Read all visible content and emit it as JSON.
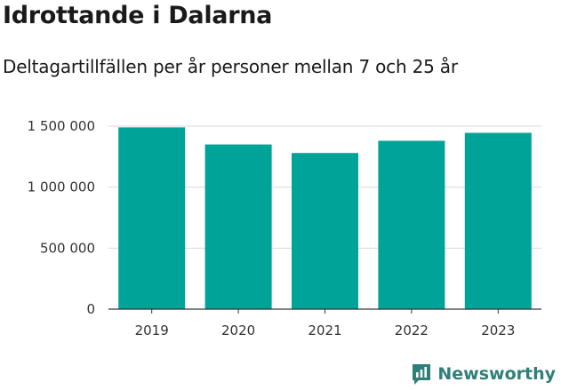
{
  "header": {
    "title": "Idrottande i Dalarna",
    "subtitle": "Deltagartillfällen per år personer mellan 7 och 25 år"
  },
  "brand": {
    "name": "Newsworthy",
    "icon": "bar-chart-logo-icon",
    "color": "#2f7f78"
  },
  "colors": {
    "bar": "#00a398",
    "grid": "#d9d9d9",
    "axis": "#333333"
  },
  "chart_data": {
    "type": "bar",
    "categories": [
      "2019",
      "2020",
      "2021",
      "2022",
      "2023"
    ],
    "values": [
      1490000,
      1350000,
      1280000,
      1380000,
      1445000
    ],
    "yticks": [
      {
        "value": 0,
        "label": "0"
      },
      {
        "value": 500000,
        "label": "500 000"
      },
      {
        "value": 1000000,
        "label": "1 000 000"
      },
      {
        "value": 1500000,
        "label": "1 500 000"
      }
    ],
    "ylim": [
      0,
      1500000
    ],
    "grid": true
  }
}
